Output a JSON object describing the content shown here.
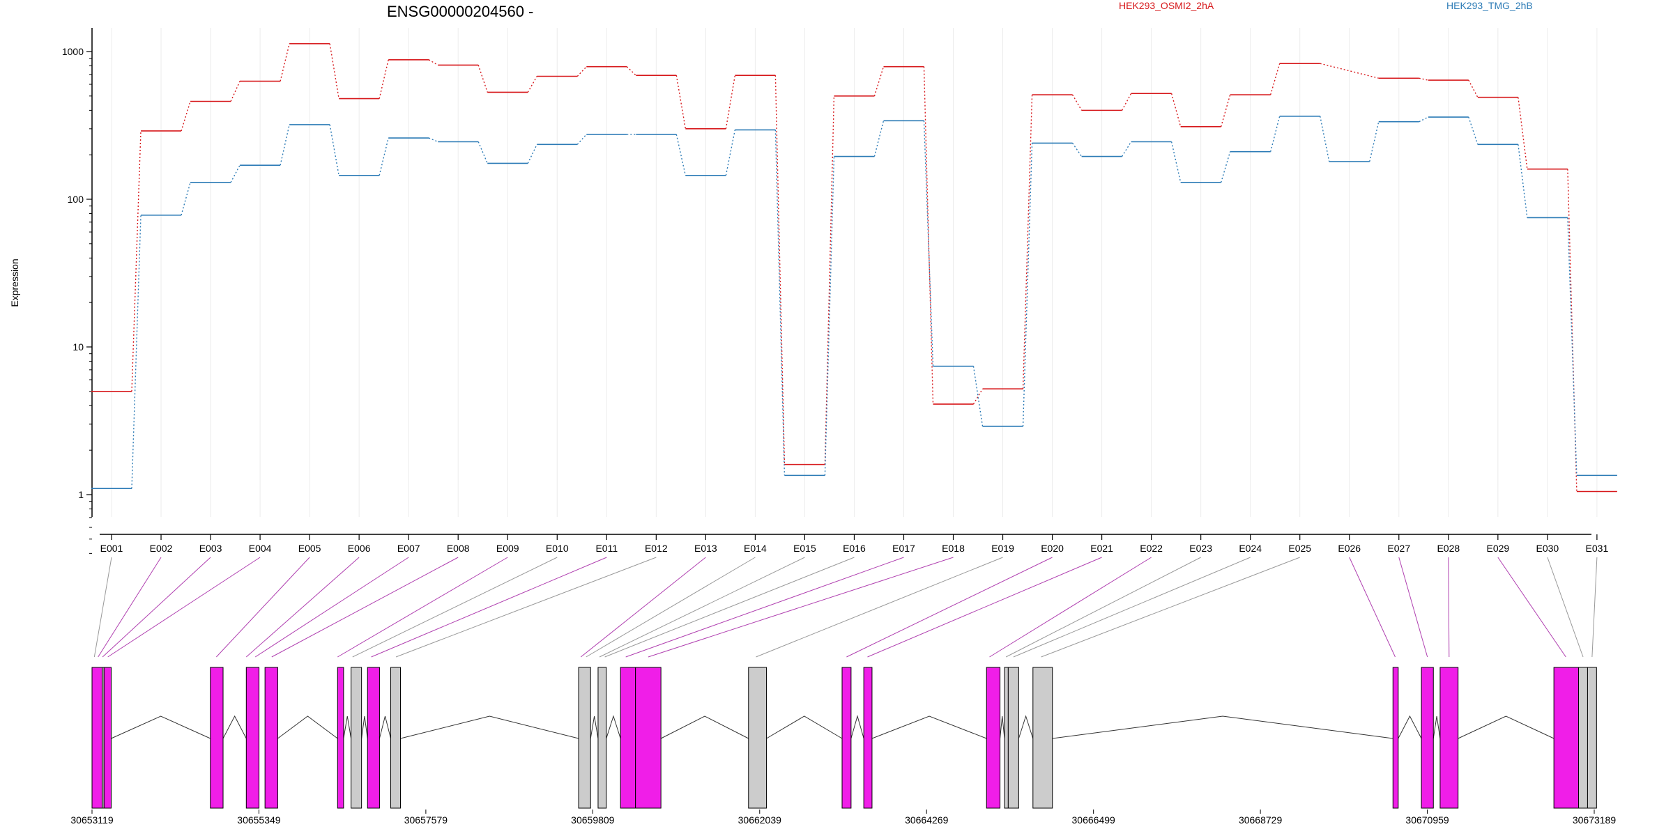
{
  "chart_data": {
    "type": "line",
    "title": "ENSG00000204560 -",
    "ylabel": "Expression",
    "y_scale": "log",
    "ylim": [
      0.4,
      1700
    ],
    "y_ticks": [
      "1",
      "10",
      "100",
      "1000"
    ],
    "y_tick_values": [
      1,
      10,
      100,
      1000
    ],
    "grid": "vertical",
    "legend_position": "top",
    "categories": [
      "E001",
      "E002",
      "E003",
      "E004",
      "E005",
      "E006",
      "E007",
      "E008",
      "E009",
      "E010",
      "E011",
      "E012",
      "E013",
      "E014",
      "E015",
      "E016",
      "E017",
      "E018",
      "E019",
      "E020",
      "E021",
      "E022",
      "E023",
      "E024",
      "E025",
      "E026",
      "E027",
      "E028",
      "E029",
      "E030",
      "E031"
    ],
    "series": [
      {
        "name": "HEK293_OSMI2_2hA",
        "color": "#d7191c",
        "values": [
          5.0,
          290,
          460,
          630,
          1130,
          480,
          880,
          810,
          530,
          680,
          790,
          690,
          300,
          690,
          1.6,
          500,
          790,
          4.1,
          5.2,
          510,
          400,
          520,
          310,
          510,
          830,
          null,
          660,
          640,
          490,
          160,
          1.05
        ]
      },
      {
        "name": "HEK293_TMG_2hB",
        "color": "#2c7bb6",
        "values": [
          1.1,
          78,
          130,
          170,
          320,
          145,
          260,
          245,
          175,
          235,
          275,
          275,
          145,
          295,
          1.35,
          195,
          340,
          7.4,
          2.9,
          240,
          195,
          245,
          130,
          210,
          365,
          180,
          335,
          360,
          235,
          75,
          1.35
        ]
      }
    ],
    "genome_axis": {
      "tick_labels": [
        "30653119",
        "30655349",
        "30657579",
        "30659809",
        "30662039",
        "30664269",
        "30666499",
        "30668729",
        "30670959",
        "30673189"
      ],
      "tick_values": [
        30653119,
        30655349,
        30657579,
        30659809,
        30662039,
        30664269,
        30666499,
        30668729,
        30670959,
        30673189
      ],
      "range": [
        30653119,
        30673300
      ]
    },
    "exon_highlight_color": "#f01ee8",
    "exon_default_color": "#cccccc",
    "exons": [
      {
        "id": "E001",
        "start": 30653119,
        "end": 30653255,
        "highlight": true
      },
      {
        "id": "E002",
        "start": 30653255,
        "end": 30653280,
        "highlight": false
      },
      {
        "id": "E003",
        "start": 30653280,
        "end": 30653375,
        "highlight": true
      },
      {
        "id": "E004",
        "start": 30654700,
        "end": 30654870,
        "highlight": true
      },
      {
        "id": "E005",
        "start": 30655180,
        "end": 30655350,
        "highlight": true
      },
      {
        "id": "E006",
        "start": 30655430,
        "end": 30655600,
        "highlight": true
      },
      {
        "id": "E007",
        "start": 30656400,
        "end": 30656480,
        "highlight": true
      },
      {
        "id": "E008",
        "start": 30656580,
        "end": 30656720,
        "highlight": false
      },
      {
        "id": "E009",
        "start": 30656800,
        "end": 30656960,
        "highlight": true
      },
      {
        "id": "E010",
        "start": 30657110,
        "end": 30657240,
        "highlight": false
      },
      {
        "id": "E011",
        "start": 30659620,
        "end": 30659780,
        "highlight": false
      },
      {
        "id": "E012",
        "start": 30659880,
        "end": 30659990,
        "highlight": false
      },
      {
        "id": "E013",
        "start": 30660180,
        "end": 30660380,
        "highlight": true
      },
      {
        "id": "E014",
        "start": 30660380,
        "end": 30660720,
        "highlight": true
      },
      {
        "id": "E015",
        "start": 30661890,
        "end": 30662130,
        "highlight": false
      },
      {
        "id": "E016",
        "start": 30663140,
        "end": 30663260,
        "highlight": true
      },
      {
        "id": "E017",
        "start": 30663430,
        "end": 30663540,
        "highlight": true
      },
      {
        "id": "E018",
        "start": 30665070,
        "end": 30665250,
        "highlight": true
      },
      {
        "id": "E019",
        "start": 30665310,
        "end": 30665360,
        "highlight": false
      },
      {
        "id": "E020",
        "start": 30665360,
        "end": 30665500,
        "highlight": false
      },
      {
        "id": "E021",
        "start": 30665690,
        "end": 30665950,
        "highlight": false
      },
      {
        "id": "E022",
        "start": 30670500,
        "end": 30670570,
        "highlight": true
      },
      {
        "id": "E023",
        "start": 30670880,
        "end": 30671040,
        "highlight": true
      },
      {
        "id": "E024",
        "start": 30671130,
        "end": 30671370,
        "highlight": true
      },
      {
        "id": "E025",
        "start": 30672650,
        "end": 30672980,
        "highlight": true
      },
      {
        "id": "E026",
        "start": 30672980,
        "end": 30673100,
        "highlight": false
      },
      {
        "id": "E027",
        "start": 30673100,
        "end": 30673220,
        "highlight": false
      }
    ],
    "connectors": [
      {
        "from": "E001",
        "to": 30653150,
        "highlight": false
      },
      {
        "from": "E002",
        "to": 30653200,
        "highlight": true
      },
      {
        "from": "E003",
        "to": 30653260,
        "highlight": true
      },
      {
        "from": "E004",
        "to": 30653330,
        "highlight": true
      },
      {
        "from": "E005",
        "to": 30654780,
        "highlight": true
      },
      {
        "from": "E006",
        "to": 30655180,
        "highlight": true
      },
      {
        "from": "E007",
        "to": 30655300,
        "highlight": true
      },
      {
        "from": "E008",
        "to": 30655520,
        "highlight": true
      },
      {
        "from": "E009",
        "to": 30656400,
        "highlight": true
      },
      {
        "from": "E010",
        "to": 30656600,
        "highlight": false
      },
      {
        "from": "E011",
        "to": 30656850,
        "highlight": true
      },
      {
        "from": "E012",
        "to": 30657180,
        "highlight": false
      },
      {
        "from": "E013",
        "to": 30659650,
        "highlight": true
      },
      {
        "from": "E014",
        "to": 30659720,
        "highlight": false
      },
      {
        "from": "E015",
        "to": 30659900,
        "highlight": false
      },
      {
        "from": "E016",
        "to": 30659970,
        "highlight": false
      },
      {
        "from": "E017",
        "to": 30660250,
        "highlight": true
      },
      {
        "from": "E018",
        "to": 30660550,
        "highlight": true
      },
      {
        "from": "E019",
        "to": 30661990,
        "highlight": false
      },
      {
        "from": "E020",
        "to": 30663200,
        "highlight": true
      },
      {
        "from": "E021",
        "to": 30663480,
        "highlight": true
      },
      {
        "from": "E022",
        "to": 30665110,
        "highlight": true
      },
      {
        "from": "E023",
        "to": 30665330,
        "highlight": false
      },
      {
        "from": "E024",
        "to": 30665430,
        "highlight": false
      },
      {
        "from": "E025",
        "to": 30665800,
        "highlight": false
      },
      {
        "from": "E026",
        "to": 30670530,
        "highlight": true
      },
      {
        "from": "E027",
        "to": 30670960,
        "highlight": true
      },
      {
        "from": "E028",
        "to": 30671250,
        "highlight": true
      },
      {
        "from": "E029",
        "to": 30672810,
        "highlight": true
      },
      {
        "from": "E030",
        "to": 30673040,
        "highlight": false
      },
      {
        "from": "E031",
        "to": 30673160,
        "highlight": false
      }
    ],
    "introns": [
      [
        30653375,
        30654700
      ],
      [
        30654870,
        30655180
      ],
      [
        30655600,
        30656400
      ],
      [
        30656480,
        30656580
      ],
      [
        30656720,
        30656800
      ],
      [
        30656960,
        30657110
      ],
      [
        30657240,
        30659620
      ],
      [
        30659780,
        30659880
      ],
      [
        30659990,
        30660180
      ],
      [
        30660720,
        30661890
      ],
      [
        30662130,
        30663140
      ],
      [
        30663260,
        30663430
      ],
      [
        30663540,
        30665070
      ],
      [
        30665250,
        30665310
      ],
      [
        30665500,
        30665690
      ],
      [
        30665950,
        30670500
      ],
      [
        30670570,
        30670880
      ],
      [
        30671040,
        30671130
      ],
      [
        30671370,
        30672650
      ]
    ]
  }
}
